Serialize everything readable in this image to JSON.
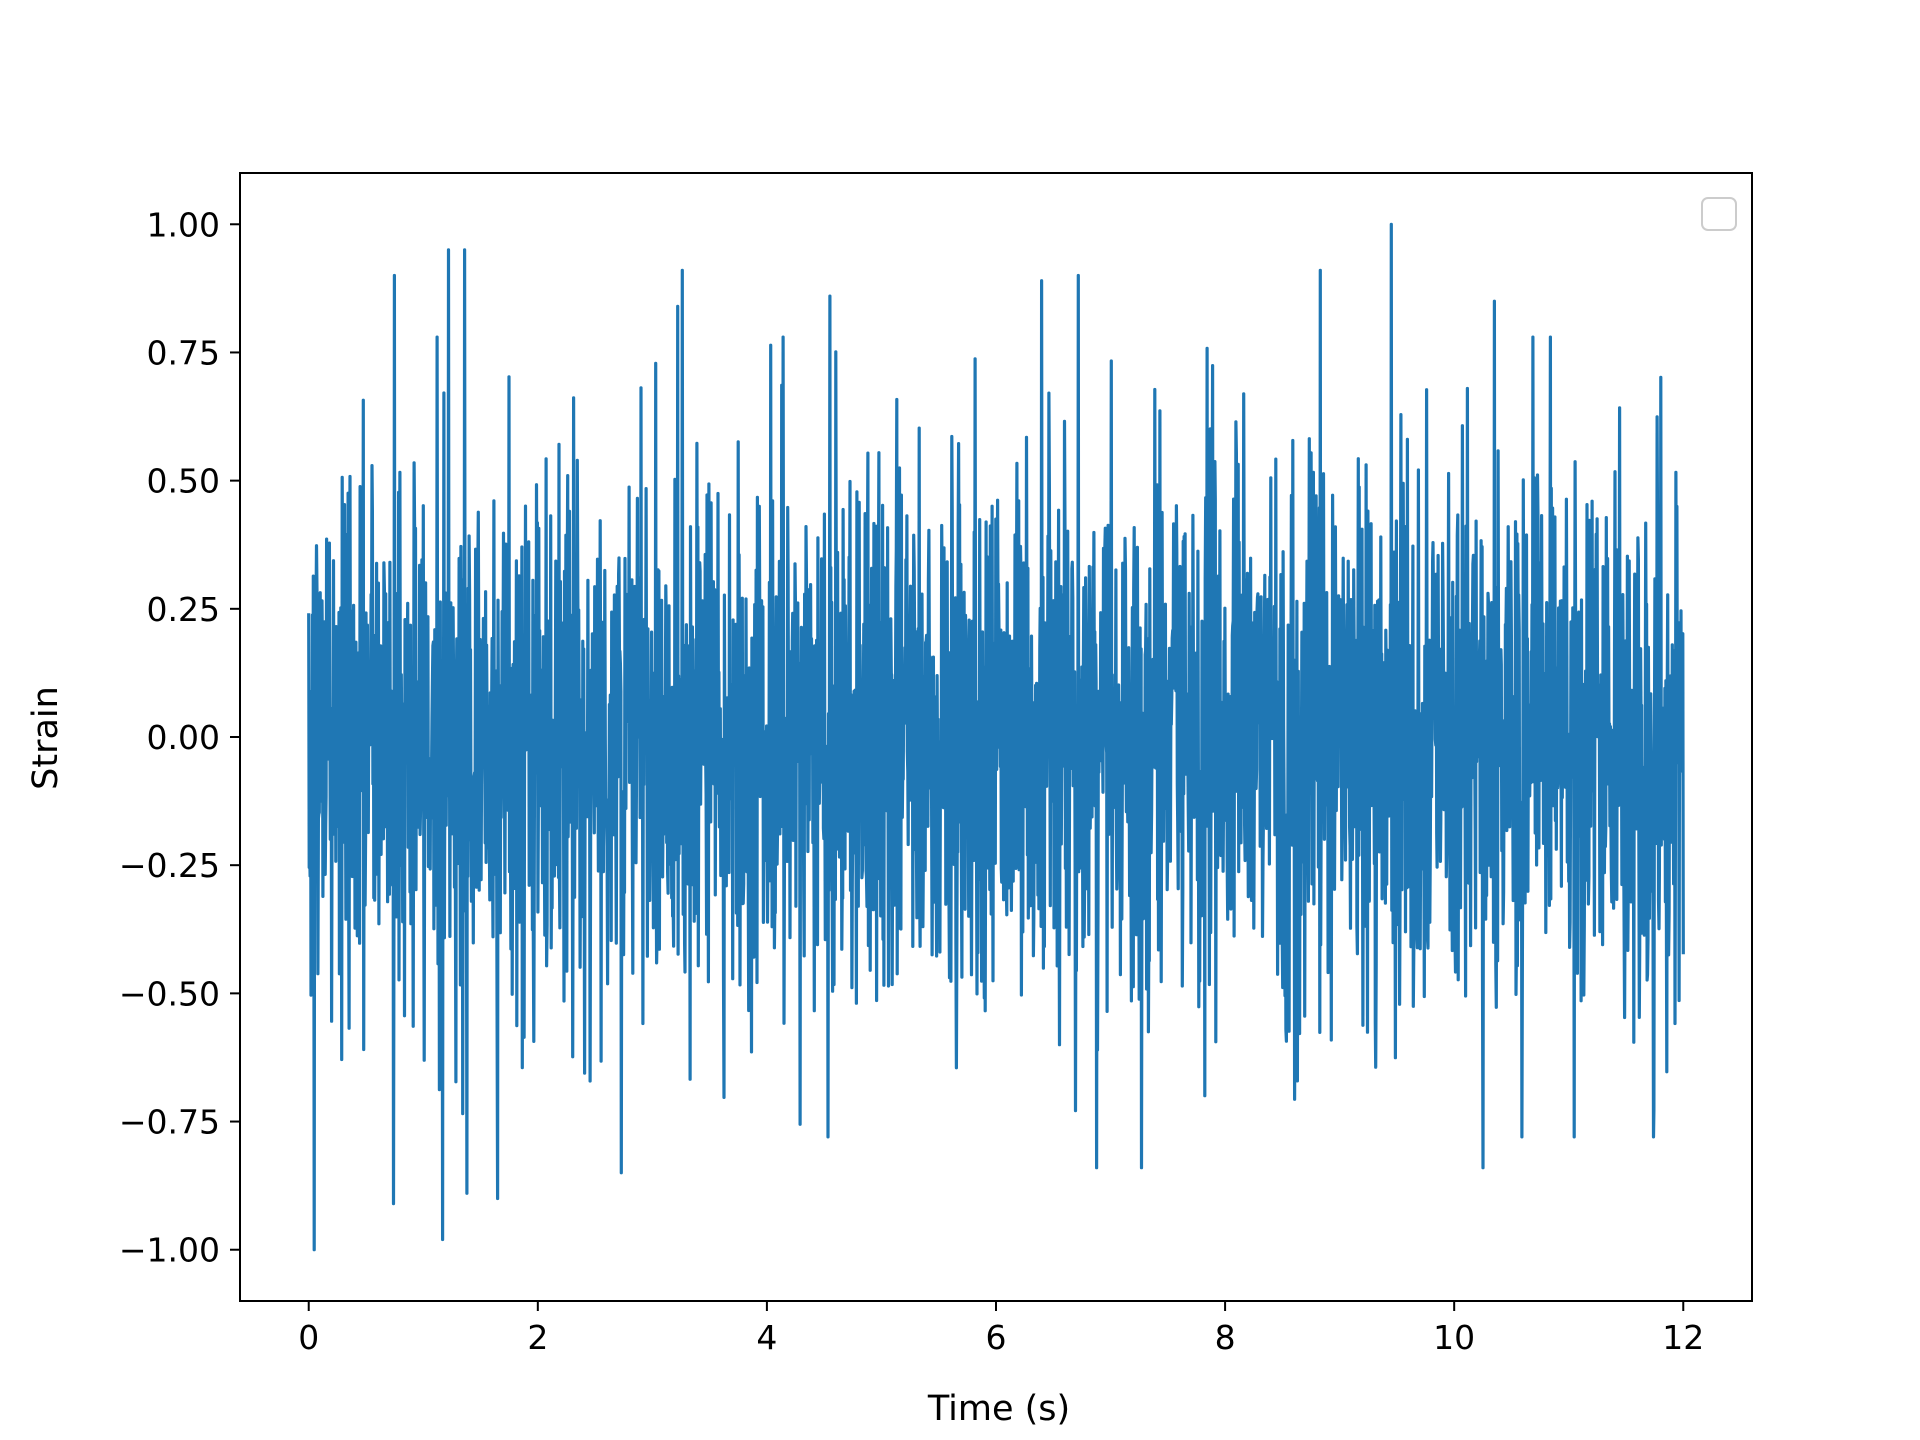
{
  "chart_data": {
    "type": "line",
    "title": "",
    "xlabel": "Time (s)",
    "ylabel": "Strain",
    "xlim": [
      -0.6,
      12.6
    ],
    "ylim": [
      -1.1,
      1.1
    ],
    "x_ticks": [
      0,
      2,
      4,
      6,
      8,
      10,
      12
    ],
    "x_tick_labels": [
      "0",
      "2",
      "4",
      "6",
      "8",
      "10",
      "12"
    ],
    "y_ticks": [
      1.0,
      0.75,
      0.5,
      0.25,
      0.0,
      -0.25,
      -0.5,
      -0.75,
      -1.0
    ],
    "y_tick_labels": [
      "1.00",
      "0.75",
      "0.50",
      "0.25",
      "0.00",
      "−0.25",
      "−0.50",
      "−0.75",
      "−1.00"
    ],
    "grid": false,
    "legend": {
      "placement": "top-right",
      "entries": []
    },
    "series": [
      {
        "color": "#1f77b4",
        "x_range": [
          0,
          12
        ],
        "sample_count": 3000,
        "distribution": "random noise, roughly symmetric about 0",
        "typical_envelope": [
          -0.45,
          0.5
        ],
        "extremes": [
          {
            "x": 0.05,
            "y": -1.0
          },
          {
            "x": 0.75,
            "y": 0.9
          },
          {
            "x": 0.74,
            "y": -0.91
          },
          {
            "x": 1.17,
            "y": -0.98
          },
          {
            "x": 1.22,
            "y": 0.95
          },
          {
            "x": 1.36,
            "y": 0.95
          },
          {
            "x": 1.38,
            "y": -0.89
          },
          {
            "x": 1.65,
            "y": -0.9
          },
          {
            "x": 2.73,
            "y": -0.85
          },
          {
            "x": 3.22,
            "y": 0.84
          },
          {
            "x": 3.26,
            "y": 0.91
          },
          {
            "x": 4.55,
            "y": 0.86
          },
          {
            "x": 6.4,
            "y": 0.89
          },
          {
            "x": 6.72,
            "y": 0.9
          },
          {
            "x": 6.88,
            "y": -0.84
          },
          {
            "x": 7.27,
            "y": -0.84
          },
          {
            "x": 8.83,
            "y": 0.91
          },
          {
            "x": 9.45,
            "y": 1.0
          },
          {
            "x": 10.25,
            "y": -0.84
          },
          {
            "x": 10.35,
            "y": 0.85
          }
        ]
      }
    ]
  }
}
